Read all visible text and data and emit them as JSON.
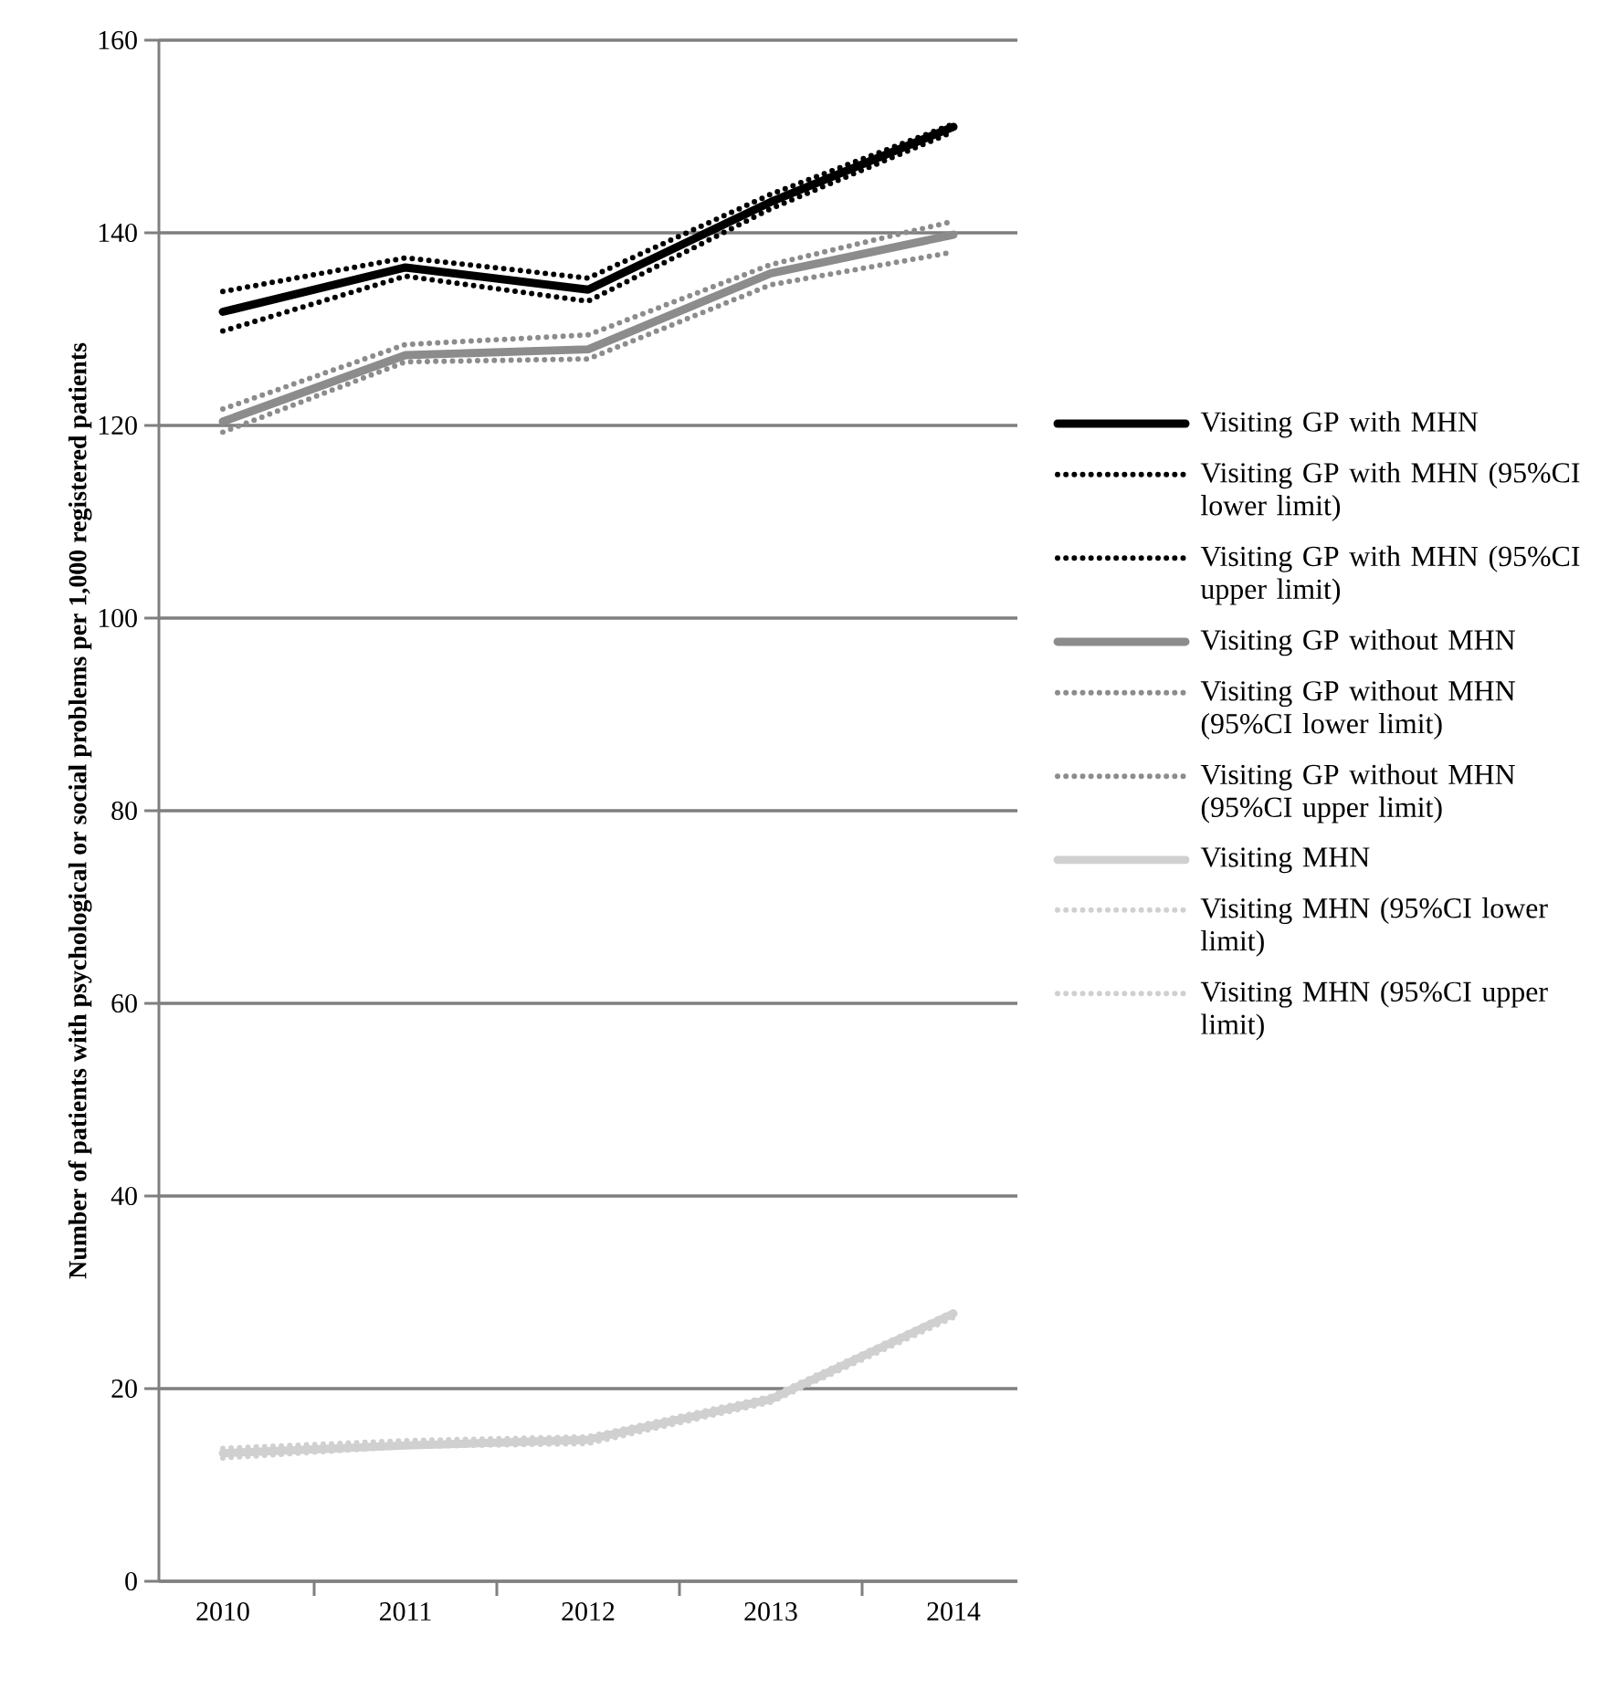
{
  "chart_data": {
    "type": "line",
    "ylabel": "Number  of patients  with psychological  or social problems  per 1,000 registered patients",
    "categories": [
      "2010",
      "2011",
      "2012",
      "2013",
      "2014"
    ],
    "ylim": [
      0,
      160
    ],
    "yticks": [
      0,
      20,
      40,
      60,
      80,
      100,
      120,
      140,
      160
    ],
    "grid": "y",
    "legend": "right",
    "series": [
      {
        "name": "Visiting GP with MHN",
        "color": "#000000",
        "line_style": "solid",
        "values": [
          131.8,
          136.4,
          134.1,
          143.2,
          151
        ]
      },
      {
        "name": "Visiting GP with MHN (95%CI lower limit)",
        "color": "#000000",
        "line_style": "dotted",
        "values": [
          129.8,
          135.5,
          132.9,
          142.5,
          150.5
        ]
      },
      {
        "name": "Visiting GP with MHN (95%CI upper limit)",
        "color": "#000000",
        "line_style": "dotted",
        "values": [
          133.9,
          137.4,
          135.3,
          144,
          151.3
        ]
      },
      {
        "name": "Visiting GP without MHN",
        "color": "#8c8c8c",
        "line_style": "solid",
        "values": [
          120.4,
          127.3,
          127.9,
          135.8,
          139.8
        ]
      },
      {
        "name": "Visiting GP without MHN (95%CI lower limit)",
        "color": "#8c8c8c",
        "line_style": "dotted",
        "values": [
          119.3,
          126.6,
          126.9,
          134.6,
          138
        ]
      },
      {
        "name": "Visiting GP without MHN (95%CI upper limit)",
        "color": "#8c8c8c",
        "line_style": "dotted",
        "values": [
          121.7,
          128.4,
          129.4,
          136.7,
          141.2
        ]
      },
      {
        "name": "Visiting MHN",
        "color": "#d0d0d0",
        "line_style": "solid",
        "values": [
          13.3,
          14.1,
          14.7,
          18.9,
          27.8
        ]
      },
      {
        "name": "Visiting MHN (95%CI lower limit)",
        "color": "#d0d0d0",
        "line_style": "dotted",
        "values": [
          12.8,
          14.0,
          14.3,
          18.6,
          27.4
        ]
      },
      {
        "name": "Visiting MHN (95%CI upper limit)",
        "color": "#d0d0d0",
        "line_style": "dotted",
        "values": [
          13.8,
          14.6,
          15.0,
          19.2,
          28.0
        ]
      }
    ]
  }
}
